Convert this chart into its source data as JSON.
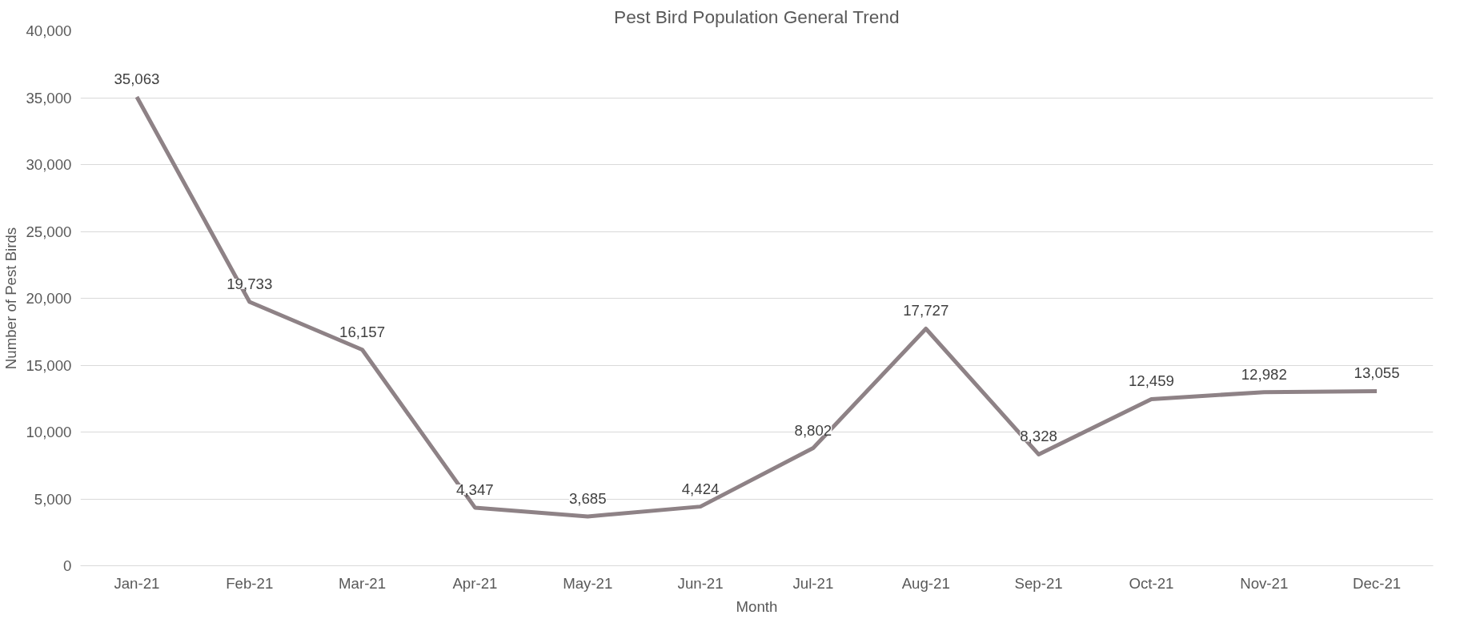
{
  "chart_data": {
    "type": "line",
    "title": "Pest Bird Population General Trend",
    "xlabel": "Month",
    "ylabel": "Number of Pest Birds",
    "categories": [
      "Jan-21",
      "Feb-21",
      "Mar-21",
      "Apr-21",
      "May-21",
      "Jun-21",
      "Jul-21",
      "Aug-21",
      "Sep-21",
      "Oct-21",
      "Nov-21",
      "Dec-21"
    ],
    "series": [
      {
        "color": "#8e8286",
        "values": [
          35063,
          19733,
          16157,
          4347,
          3685,
          4424,
          8802,
          17727,
          8328,
          12459,
          12982,
          13055
        ],
        "value_labels": [
          "35,063",
          "19,733",
          "16,157",
          "4,347",
          "3,685",
          "4,424",
          "8,802",
          "17,727",
          "8,328",
          "12,459",
          "12,982",
          "13,055"
        ]
      }
    ],
    "ylim": [
      0,
      40000
    ],
    "yticks": [
      0,
      {
        "value": 5000,
        "label": "5,000"
      },
      {
        "value": 10000,
        "label": "10,000"
      },
      {
        "value": 15000,
        "label": "15,000"
      },
      {
        "value": 20000,
        "label": "20,000"
      },
      {
        "value": 25000,
        "label": "25,000"
      },
      {
        "value": 30000,
        "label": "30,000"
      },
      {
        "value": 35000,
        "label": "35,000"
      },
      {
        "value": 40000,
        "label": "40,000"
      }
    ],
    "grid": "y",
    "marker": "none",
    "line_style": "solid"
  }
}
